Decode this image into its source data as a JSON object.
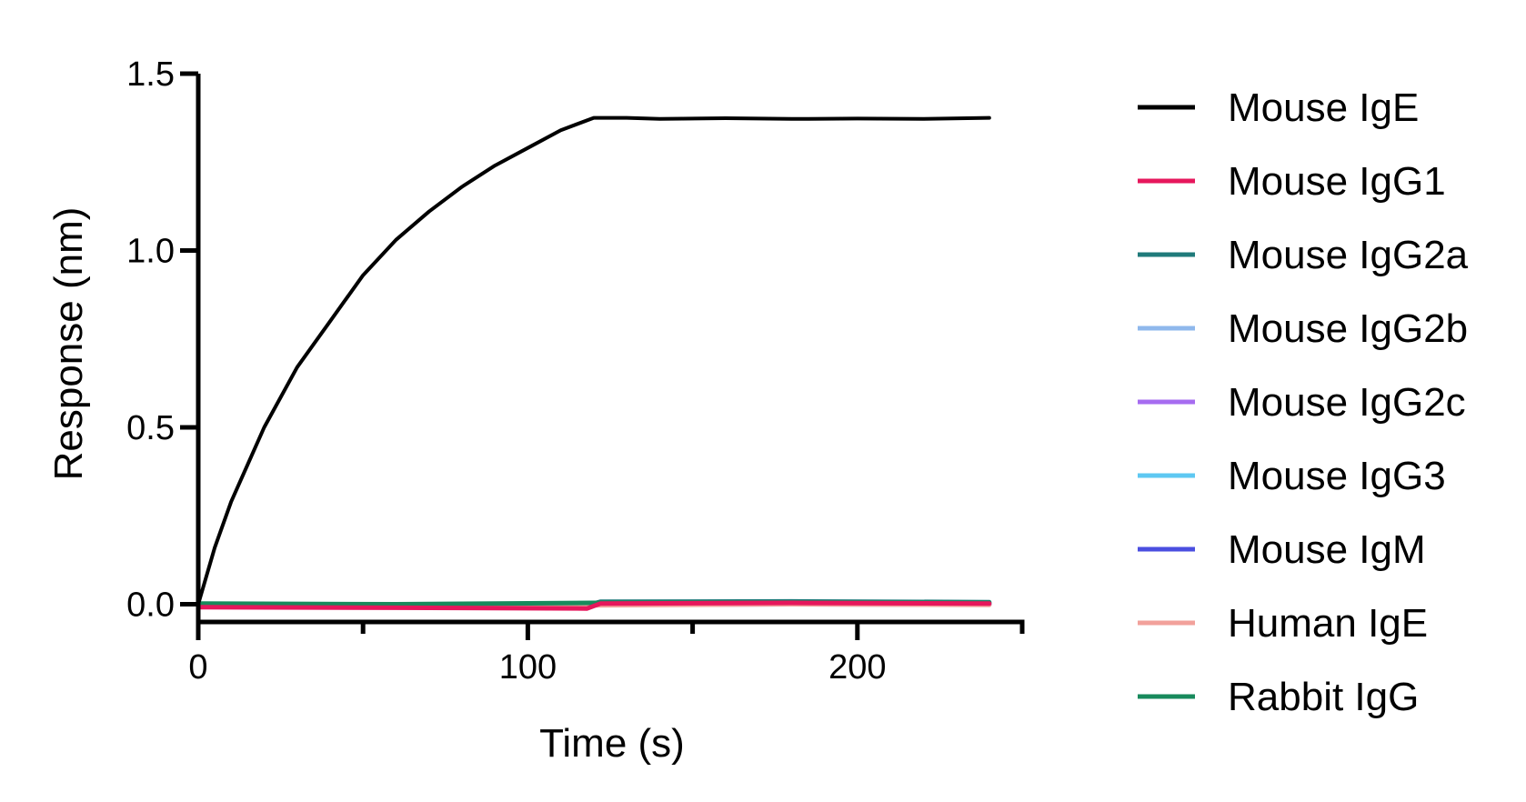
{
  "chart_data": {
    "type": "line",
    "title": "",
    "xlabel": "Time (s)",
    "ylabel": "Response  (nm)",
    "xlim": [
      0,
      250
    ],
    "ylim": [
      -0.05,
      1.5
    ],
    "x_ticks": [
      0,
      100,
      200
    ],
    "x_minor_ticks": [
      50,
      150,
      250
    ],
    "y_ticks": [
      0.0,
      0.5,
      1.0,
      1.5
    ],
    "x_tick_labels": [
      "0",
      "100",
      "200"
    ],
    "y_tick_labels": [
      "0.0",
      "0.5",
      "1.0",
      "1.5"
    ],
    "grid": false,
    "legend_position": "right",
    "series": [
      {
        "name": "Mouse IgE",
        "color": "#000000",
        "x": [
          0,
          5,
          10,
          20,
          30,
          40,
          50,
          60,
          70,
          80,
          90,
          100,
          110,
          120,
          130,
          140,
          160,
          180,
          200,
          220,
          240
        ],
        "y": [
          0.0,
          0.16,
          0.29,
          0.5,
          0.67,
          0.8,
          0.93,
          1.03,
          1.11,
          1.18,
          1.24,
          1.29,
          1.34,
          1.375,
          1.375,
          1.372,
          1.374,
          1.372,
          1.373,
          1.372,
          1.375
        ]
      },
      {
        "name": "Mouse IgG1",
        "color": "#e6175c",
        "x": [
          0,
          60,
          118,
          122,
          180,
          240
        ],
        "y": [
          -0.008,
          -0.01,
          -0.012,
          0.002,
          0.004,
          0.002
        ]
      },
      {
        "name": "Mouse IgG2a",
        "color": "#1f7a7a",
        "x": [
          0,
          60,
          118,
          122,
          180,
          240
        ],
        "y": [
          0.0,
          -0.002,
          -0.003,
          0.007,
          0.008,
          0.006
        ]
      },
      {
        "name": "Mouse IgG2b",
        "color": "#8fb8ec",
        "x": [
          0,
          60,
          120,
          180,
          240
        ],
        "y": [
          -0.002,
          -0.004,
          0.0,
          0.002,
          0.001
        ]
      },
      {
        "name": "Mouse IgG2c",
        "color": "#a66cf0",
        "x": [
          0,
          60,
          120,
          180,
          240
        ],
        "y": [
          -0.004,
          -0.006,
          -0.002,
          0.001,
          0.0
        ]
      },
      {
        "name": "Mouse IgG3",
        "color": "#5ec8f2",
        "x": [
          0,
          60,
          120,
          180,
          240
        ],
        "y": [
          0.001,
          -0.001,
          0.003,
          0.004,
          0.003
        ]
      },
      {
        "name": "Mouse IgM",
        "color": "#4a4ee0",
        "x": [
          0,
          60,
          120,
          180,
          240
        ],
        "y": [
          -0.003,
          -0.005,
          -0.001,
          0.0,
          -0.001
        ]
      },
      {
        "name": "Human IgE",
        "color": "#f2a19b",
        "x": [
          0,
          60,
          120,
          180,
          240
        ],
        "y": [
          -0.005,
          -0.007,
          -0.003,
          0.0,
          -0.002
        ]
      },
      {
        "name": "Rabbit IgG",
        "color": "#188a5c",
        "x": [
          0,
          60,
          120,
          180,
          240
        ],
        "y": [
          0.002,
          0.0,
          0.004,
          0.005,
          0.004
        ]
      }
    ]
  }
}
